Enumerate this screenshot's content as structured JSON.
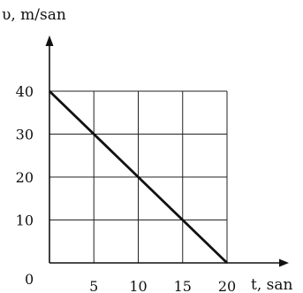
{
  "chart_data": {
    "type": "line",
    "xlabel": "t, san",
    "ylabel": "υ, m/san",
    "origin_label": "0",
    "x_ticks": [
      "5",
      "10",
      "15",
      "20"
    ],
    "y_ticks": [
      "10",
      "20",
      "30",
      "40"
    ],
    "xlim": [
      0,
      20
    ],
    "ylim": [
      0,
      40
    ],
    "grid": true,
    "series": [
      {
        "x": [
          0,
          20
        ],
        "y": [
          40,
          0
        ]
      }
    ]
  }
}
